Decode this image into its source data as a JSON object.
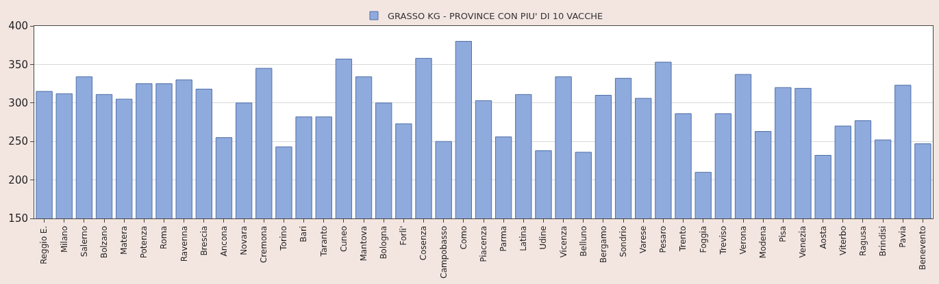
{
  "chart_data": {
    "type": "bar",
    "categories": [
      "Reggio E.",
      "Milano",
      "Salerno",
      "Bolzano",
      "Matera",
      "Potenza",
      "Roma",
      "Ravenna",
      "Brescia",
      "Ancona",
      "Novara",
      "Cremona",
      "Torino",
      "Bari",
      "Taranto",
      "Cuneo",
      "Mantova",
      "Bologna",
      "Forli'",
      "Cosenza",
      "Campobasso",
      "Como",
      "Piacenza",
      "Parma",
      "Latina",
      "Udine",
      "Vicenza",
      "Belluno",
      "Bergamo",
      "Sondrio",
      "Varese",
      "Pesaro",
      "Trento",
      "Foggia",
      "Treviso",
      "Verona",
      "Modena",
      "Pisa",
      "Venezia",
      "Aosta",
      "Viterbo",
      "Ragusa",
      "Brindisi",
      "Pavia",
      "Benevento"
    ],
    "series": [
      {
        "name": "GRASSO KG - PROVINCE CON PIU' DI 10 VACCHE",
        "color": "#8faadc",
        "values": [
          315,
          312,
          334,
          311,
          305,
          325,
          325,
          330,
          318,
          255,
          300,
          345,
          243,
          282,
          282,
          357,
          334,
          300,
          273,
          358,
          250,
          380,
          303,
          256,
          311,
          238,
          334,
          236,
          310,
          332,
          306,
          353,
          286,
          210,
          286,
          337,
          263,
          320,
          319,
          232,
          270,
          277,
          252,
          323,
          247
        ]
      }
    ],
    "ylim": [
      150,
      400
    ],
    "yticks": [
      150,
      200,
      250,
      300,
      350,
      400
    ],
    "grid": "y",
    "legend": "top"
  }
}
